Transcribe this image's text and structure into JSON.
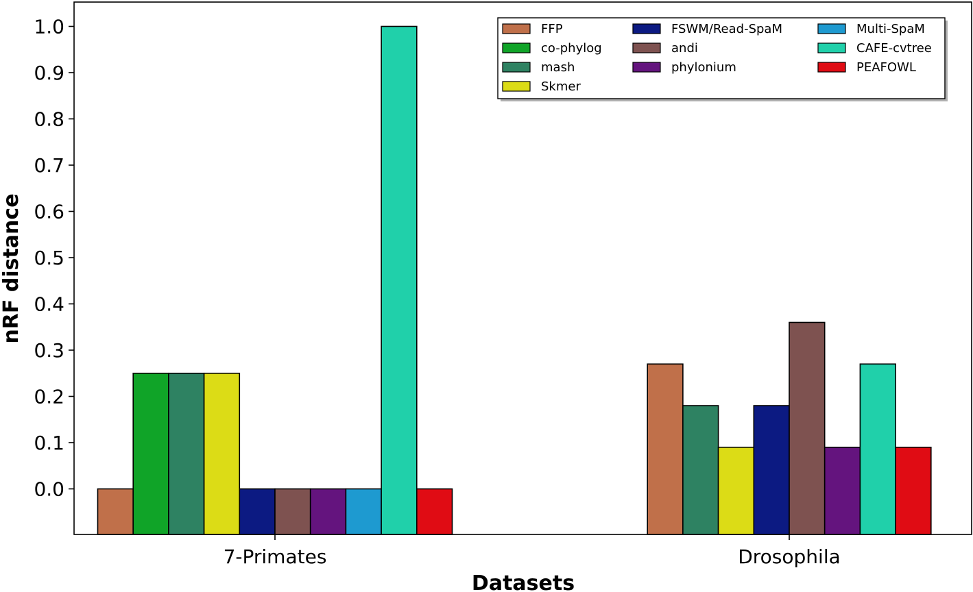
{
  "chart_data": {
    "type": "bar",
    "title": "",
    "xlabel": "Datasets",
    "ylabel": "nRF distance",
    "ylim": [
      -0.1,
      1.05
    ],
    "yticks": [
      "0.0",
      "0.1",
      "0.2",
      "0.3",
      "0.4",
      "0.5",
      "0.6",
      "0.7",
      "0.8",
      "0.9",
      "1.0"
    ],
    "categories": [
      "7-Primates",
      "Drosophila"
    ],
    "legend_position": "top-right",
    "grid": false,
    "series": [
      {
        "name": "FFP",
        "color": "#c0704a",
        "values": [
          0.0,
          0.27
        ]
      },
      {
        "name": "co-phylog",
        "color": "#10a428",
        "values": [
          0.25,
          null
        ]
      },
      {
        "name": "mash",
        "color": "#2e8262",
        "values": [
          0.25,
          0.18
        ]
      },
      {
        "name": "Skmer",
        "color": "#dcdc16",
        "values": [
          0.25,
          0.09
        ]
      },
      {
        "name": "FSWM/Read-SpaM",
        "color": "#0c1a82",
        "values": [
          0.0,
          0.18
        ]
      },
      {
        "name": "andi",
        "color": "#7e5250",
        "values": [
          0.0,
          0.36
        ]
      },
      {
        "name": "phylonium",
        "color": "#64147e",
        "values": [
          0.0,
          0.09
        ]
      },
      {
        "name": "Multi-SpaM",
        "color": "#1e9ad0",
        "values": [
          0.0,
          null
        ]
      },
      {
        "name": "CAFE-cvtree",
        "color": "#20d0aa",
        "values": [
          1.0,
          0.27
        ]
      },
      {
        "name": "PEAFOWL",
        "color": "#e00c14",
        "values": [
          0.0,
          0.09
        ]
      }
    ]
  }
}
